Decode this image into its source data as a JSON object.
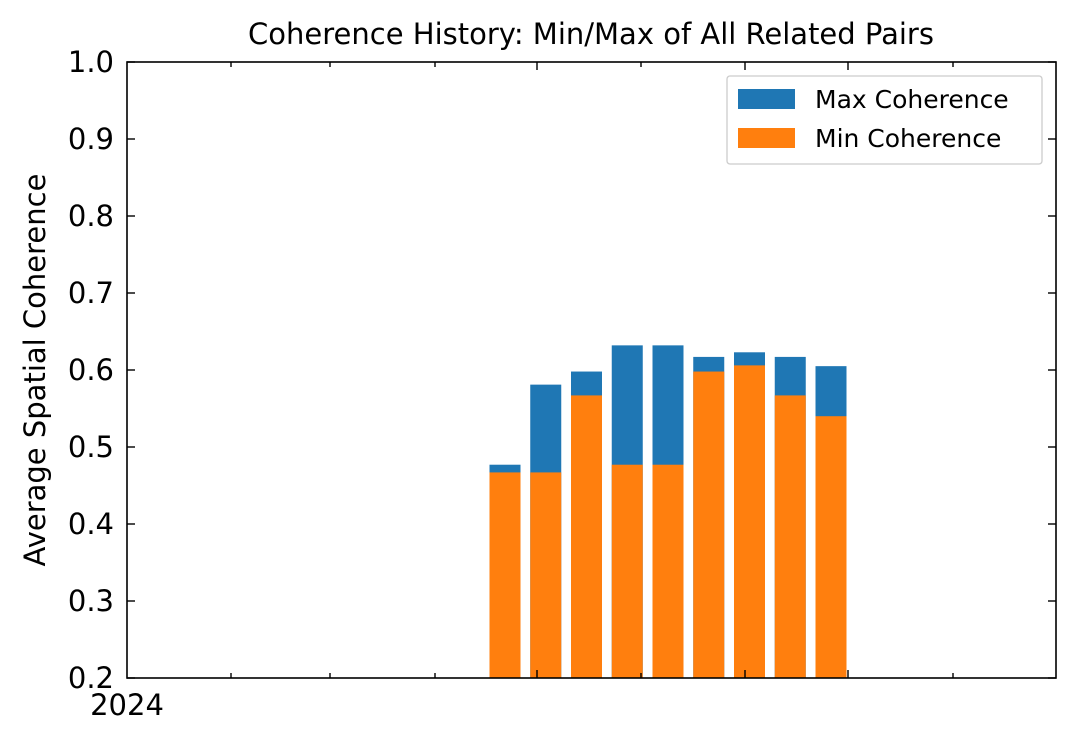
{
  "chart_data": {
    "type": "bar",
    "title": "Coherence History: Min/Max of All Related Pairs",
    "xlabel": "",
    "ylabel": "Average Spatial Coherence",
    "ylim": [
      0.2,
      1.0
    ],
    "yticks": [
      "0.2",
      "0.3",
      "0.4",
      "0.5",
      "0.6",
      "0.7",
      "0.8",
      "0.9",
      "1.0"
    ],
    "xtick_label": "2024",
    "categories": [
      "",
      "",
      "",
      "",
      "",
      "",
      "",
      "",
      ""
    ],
    "series": [
      {
        "name": "Max Coherence",
        "color": "#1f77b4",
        "values": [
          0.477,
          0.581,
          0.598,
          0.632,
          0.632,
          0.617,
          0.623,
          0.617,
          0.605
        ]
      },
      {
        "name": "Min Coherence",
        "color": "#ff7f0e",
        "values": [
          0.467,
          0.467,
          0.567,
          0.477,
          0.477,
          0.598,
          0.606,
          0.567,
          0.54
        ]
      }
    ],
    "grid": false,
    "legend_position": "top-right"
  }
}
